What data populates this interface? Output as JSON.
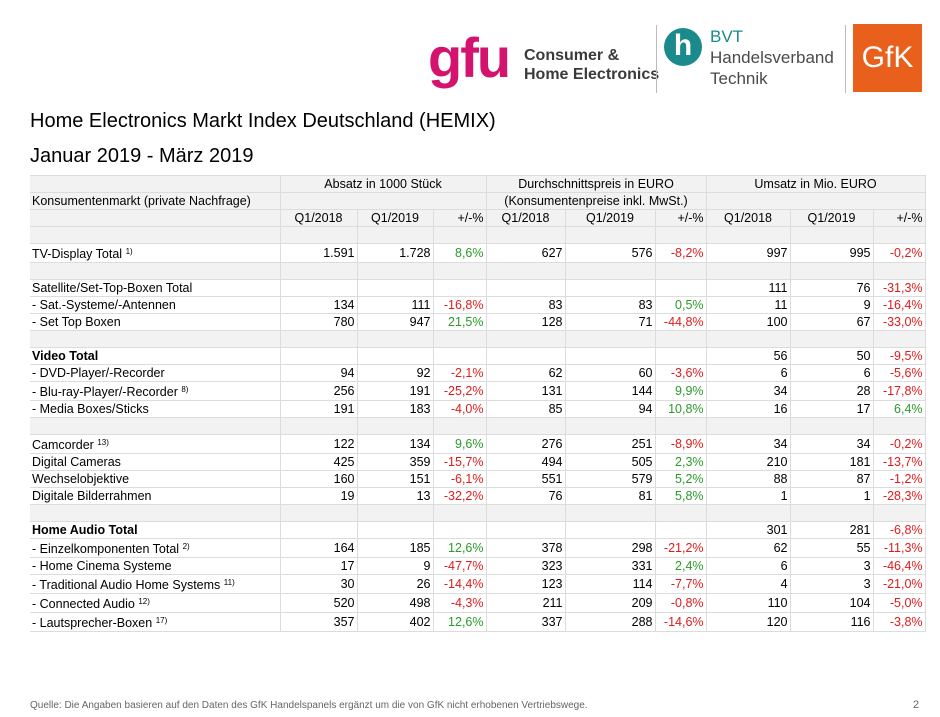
{
  "header": {
    "gfu": "gfu",
    "gfu_tagline": [
      "Consumer &",
      "Home Electronics"
    ],
    "bvt": {
      "icon": "h",
      "lines": [
        "BVT",
        "Handelsverband",
        "Technik"
      ]
    },
    "gfk": "GfK"
  },
  "title": "Home Electronics Markt Index Deutschland (HEMIX)",
  "subtitle": "Januar 2019 - März 2019",
  "table": {
    "groups": [
      "Absatz in 1000 Stück",
      "Durchschnittspreis in EURO",
      "Umsatz in Mio. EURO"
    ],
    "market_label": "Konsumentenmarkt (private Nachfrage)",
    "price_note": "(Konsumentenpreise inkl. MwSt.)",
    "columns": [
      "Q1/2018",
      "Q1/2019",
      "+/-%",
      "Q1/2018",
      "Q1/2019",
      "+/-%",
      "Q1/2018",
      "Q1/2019",
      "+/-%"
    ],
    "rows": [
      null,
      {
        "label": "TV-Display Total",
        "note": "1)",
        "cells": [
          "1.591",
          "1.728",
          "8,6%",
          "627",
          "576",
          "-8,2%",
          "997",
          "995",
          "-0,2%"
        ]
      },
      null,
      {
        "label": "Satellite/Set-Top-Boxen Total",
        "cells": [
          null,
          null,
          null,
          null,
          null,
          null,
          "111",
          "76",
          "-31,3%"
        ]
      },
      {
        "label": "- Sat.-Systeme/-Antennen",
        "cells": [
          "134",
          "111",
          "-16,8%",
          "83",
          "83",
          "0,5%",
          "11",
          "9",
          "-16,4%"
        ]
      },
      {
        "label": "- Set Top Boxen",
        "cells": [
          "780",
          "947",
          "21,5%",
          "128",
          "71",
          "-44,8%",
          "100",
          "67",
          "-33,0%"
        ]
      },
      null,
      {
        "label": "Video Total",
        "bold": true,
        "cells": [
          null,
          null,
          null,
          null,
          null,
          null,
          "56",
          "50",
          "-9,5%"
        ]
      },
      {
        "label": "- DVD-Player/-Recorder",
        "cells": [
          "94",
          "92",
          "-2,1%",
          "62",
          "60",
          "-3,6%",
          "6",
          "6",
          "-5,6%"
        ]
      },
      {
        "label": "- Blu-ray-Player/-Recorder",
        "note": "8)",
        "cells": [
          "256",
          "191",
          "-25,2%",
          "131",
          "144",
          "9,9%",
          "34",
          "28",
          "-17,8%"
        ]
      },
      {
        "label": "- Media Boxes/Sticks",
        "cells": [
          "191",
          "183",
          "-4,0%",
          "85",
          "94",
          "10,8%",
          "16",
          "17",
          "6,4%"
        ]
      },
      null,
      {
        "label": "Camcorder",
        "note": "13)",
        "cells": [
          "122",
          "134",
          "9,6%",
          "276",
          "251",
          "-8,9%",
          "34",
          "34",
          "-0,2%"
        ]
      },
      {
        "label": "Digital Cameras",
        "cells": [
          "425",
          "359",
          "-15,7%",
          "494",
          "505",
          "2,3%",
          "210",
          "181",
          "-13,7%"
        ]
      },
      {
        "label": "Wechselobjektive",
        "cells": [
          "160",
          "151",
          "-6,1%",
          "551",
          "579",
          "5,2%",
          "88",
          "87",
          "-1,2%"
        ]
      },
      {
        "label": "Digitale Bilderrahmen",
        "cells": [
          "19",
          "13",
          "-32,2%",
          "76",
          "81",
          "5,8%",
          "1",
          "1",
          "-28,3%"
        ]
      },
      null,
      {
        "label": "Home Audio Total",
        "bold": true,
        "cells": [
          null,
          null,
          null,
          null,
          null,
          null,
          "301",
          "281",
          "-6,8%"
        ]
      },
      {
        "label": "- Einzelkomponenten Total",
        "note": "2)",
        "cells": [
          "164",
          "185",
          "12,6%",
          "378",
          "298",
          "-21,2%",
          "62",
          "55",
          "-11,3%"
        ]
      },
      {
        "label": "- Home Cinema Systeme",
        "cells": [
          "17",
          "9",
          "-47,7%",
          "323",
          "331",
          "2,4%",
          "6",
          "3",
          "-46,4%"
        ]
      },
      {
        "label": "- Traditional Audio Home Systems",
        "note": "11)",
        "cells": [
          "30",
          "26",
          "-14,4%",
          "123",
          "114",
          "-7,7%",
          "4",
          "3",
          "-21,0%"
        ]
      },
      {
        "label": "- Connected Audio",
        "note": "12)",
        "cells": [
          "520",
          "498",
          "-4,3%",
          "211",
          "209",
          "-0,8%",
          "110",
          "104",
          "-5,0%"
        ]
      },
      {
        "label": "- Lautsprecher-Boxen",
        "note": "17)",
        "cells": [
          "357",
          "402",
          "12,6%",
          "337",
          "288",
          "-14,6%",
          "120",
          "116",
          "-3,8%"
        ]
      }
    ]
  },
  "footer": {
    "source": "Quelle: Die Angaben basieren auf den Daten des GfK Handelspanels ergänzt um die von GfK nicht erhobenen Vertriebswege.",
    "page": "2"
  }
}
